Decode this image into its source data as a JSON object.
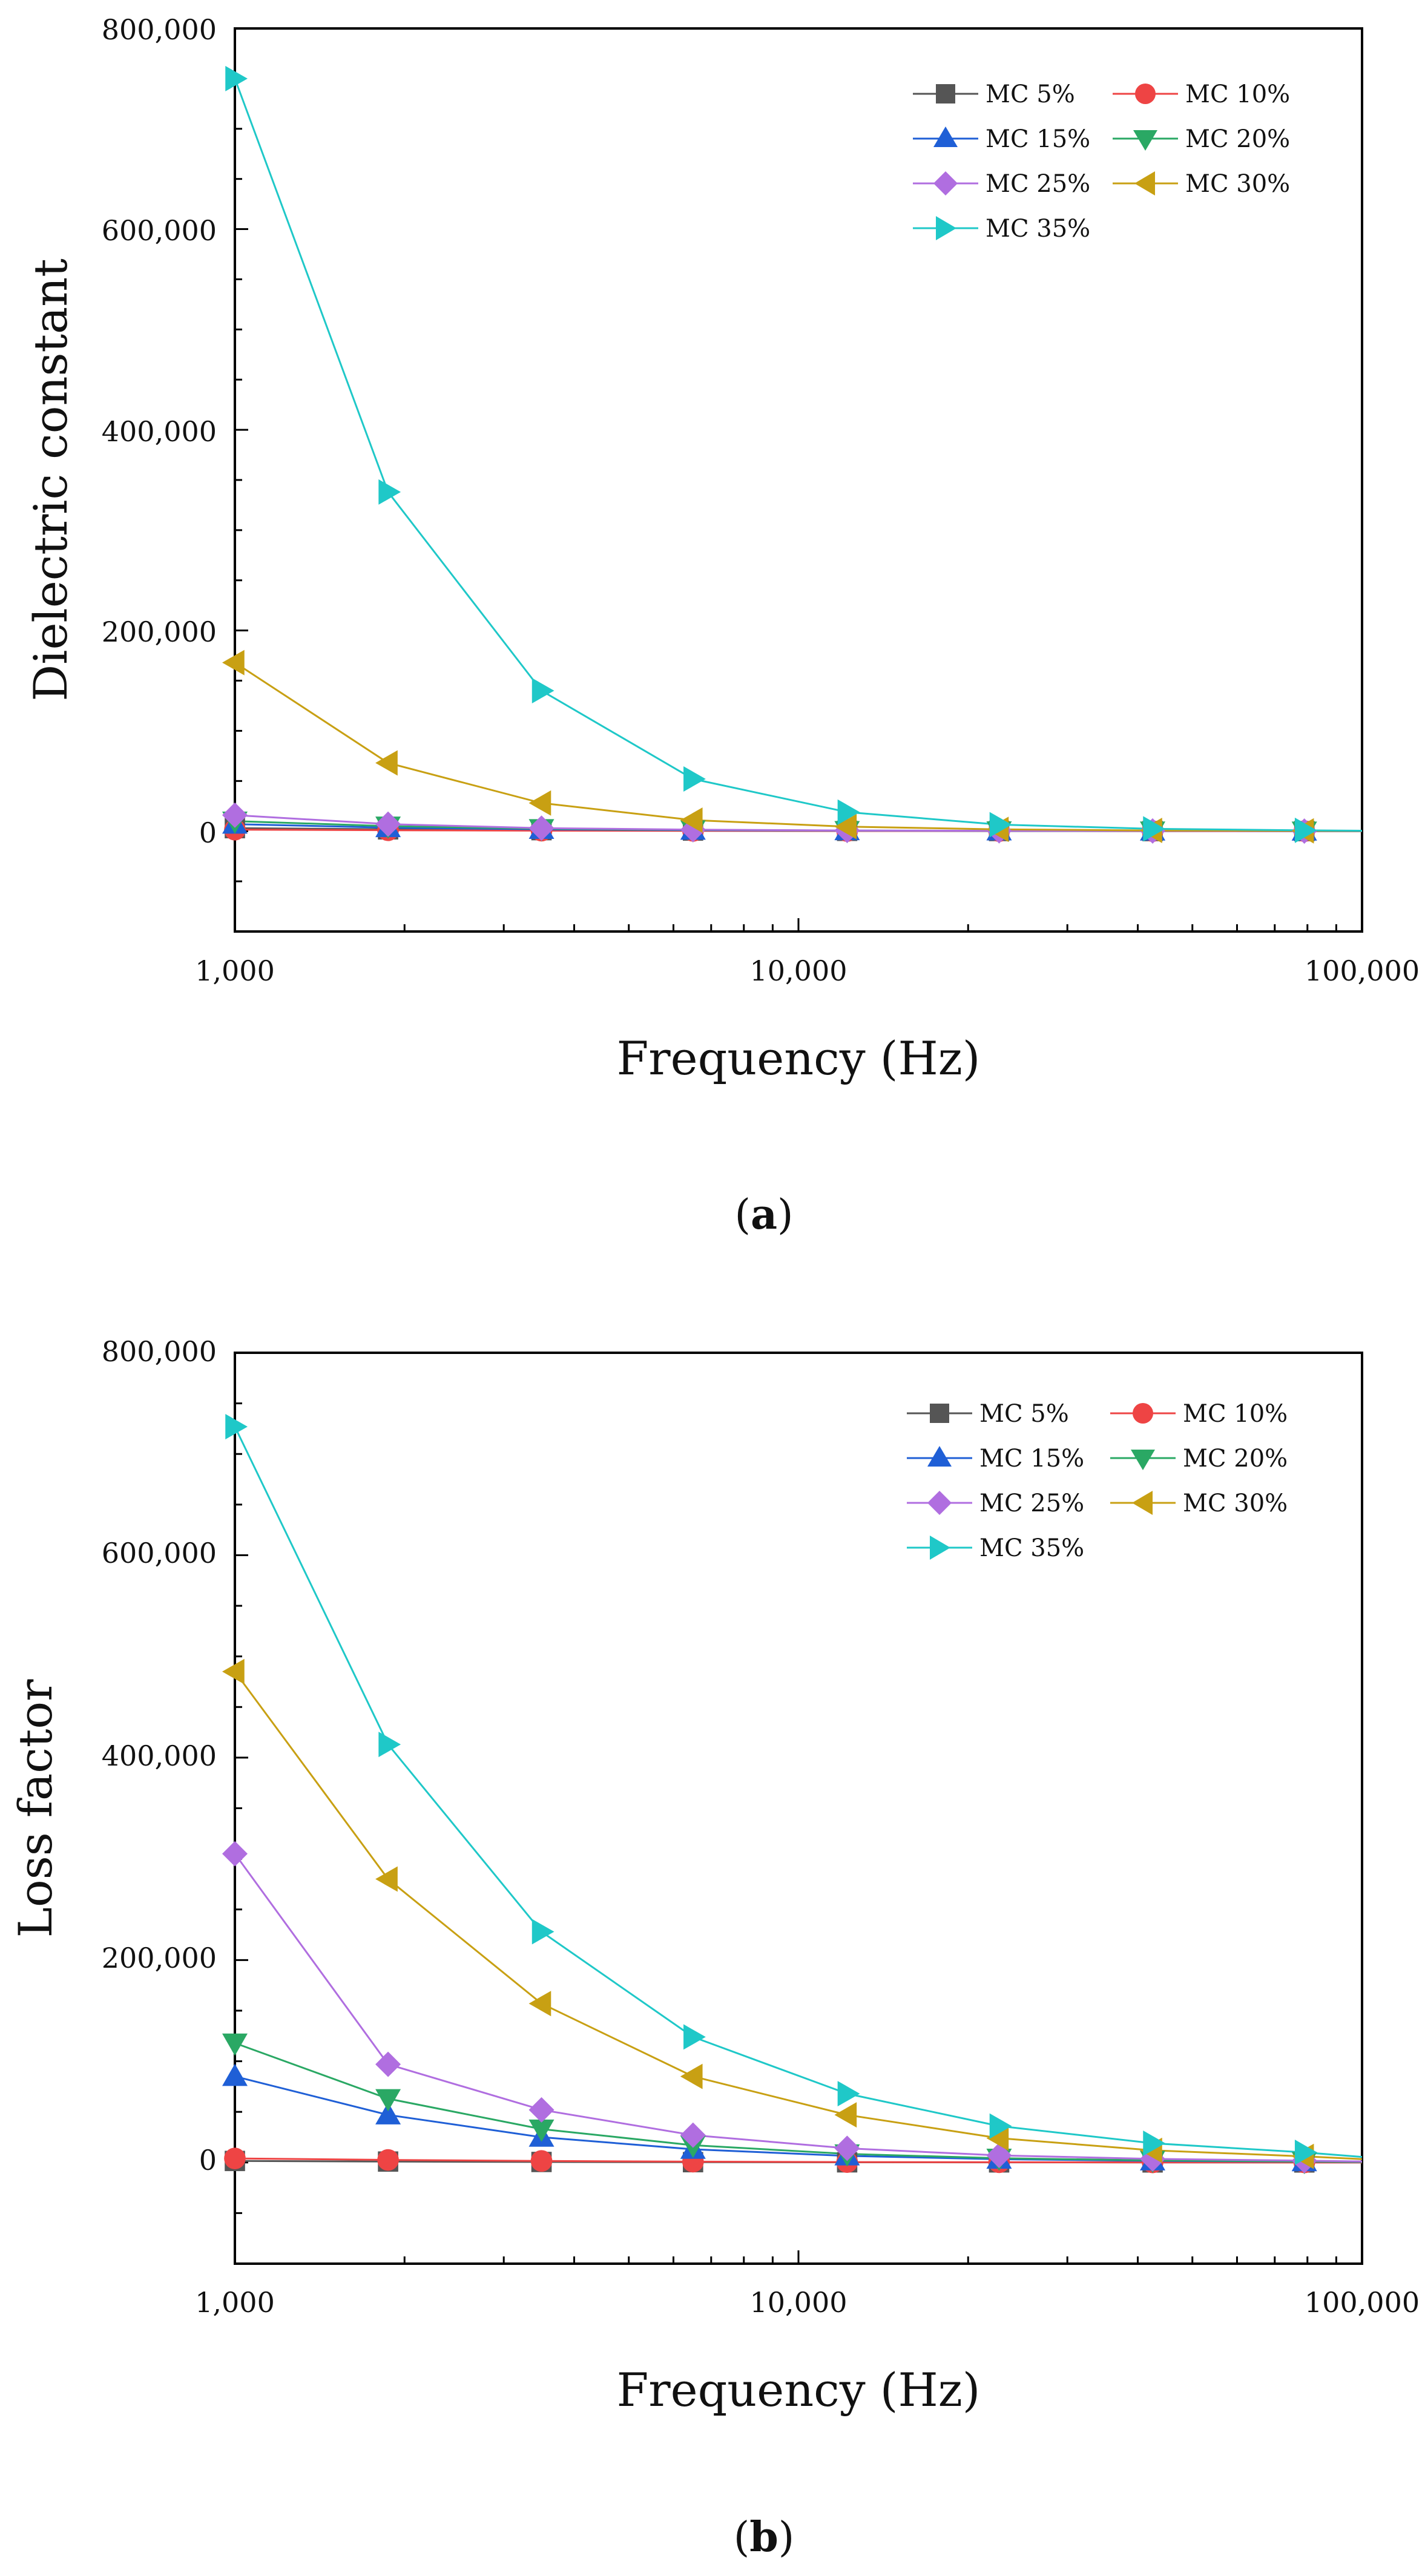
{
  "chart_data": [
    {
      "id": "a",
      "type": "line",
      "caption_open": "(",
      "caption_letter": "a",
      "caption_close": ")",
      "title": "",
      "xlabel": "Frequency (Hz)",
      "ylabel": "Dielectric constant",
      "xscale": "log",
      "xlim": [
        1000,
        100000
      ],
      "ylim": [
        -100000,
        800000
      ],
      "xticks": [
        1000,
        10000,
        100000
      ],
      "xtick_labels": [
        "1,000",
        "10,000",
        "100,000"
      ],
      "yticks": [
        0,
        200000,
        400000,
        600000,
        800000
      ],
      "ytick_labels": [
        "0",
        "200,000",
        "400,000",
        "600,000",
        "800,000"
      ],
      "legend_position": "top-right",
      "marker_x": [
        1000,
        1870,
        3500,
        6500,
        12200,
        22700,
        42500,
        79000
      ],
      "series": [
        {
          "name": "MC 5%",
          "color": "#555555",
          "marker": "square",
          "values": [
            3000,
            1800,
            1000,
            600,
            300,
            150,
            80,
            40
          ]
        },
        {
          "name": "MC 10%",
          "color": "#ee4444",
          "marker": "circle",
          "values": [
            1500,
            900,
            500,
            300,
            150,
            80,
            40,
            20
          ]
        },
        {
          "name": "MC 15%",
          "color": "#1f5fd6",
          "marker": "triangle-up",
          "values": [
            7000,
            3500,
            1800,
            1000,
            500,
            250,
            120,
            60
          ]
        },
        {
          "name": "MC 20%",
          "color": "#2aa864",
          "marker": "triangle-down",
          "values": [
            10000,
            5000,
            2500,
            1300,
            600,
            300,
            150,
            80
          ]
        },
        {
          "name": "MC 25%",
          "color": "#b06ee0",
          "marker": "diamond",
          "values": [
            16000,
            7000,
            3000,
            1500,
            700,
            350,
            180,
            90
          ]
        },
        {
          "name": "MC 30%",
          "color": "#c8a013",
          "marker": "triangle-left",
          "values": [
            168000,
            68000,
            28000,
            11000,
            4500,
            1800,
            700,
            300
          ]
        },
        {
          "name": "MC 35%",
          "color": "#1fc8c8",
          "marker": "triangle-right",
          "values": [
            750000,
            338000,
            140000,
            52000,
            19000,
            6500,
            2300,
            800
          ]
        }
      ]
    },
    {
      "id": "b",
      "type": "line",
      "caption_open": "(",
      "caption_letter": "b",
      "caption_close": ")",
      "title": "",
      "xlabel": "Frequency (Hz)",
      "ylabel": "Loss factor",
      "xscale": "log",
      "xlim": [
        1000,
        100000
      ],
      "ylim": [
        -100000,
        800000
      ],
      "xticks": [
        1000,
        10000,
        100000
      ],
      "xtick_labels": [
        "1,000",
        "10,000",
        "100,000"
      ],
      "yticks": [
        0,
        200000,
        400000,
        600000,
        800000
      ],
      "ytick_labels": [
        "0",
        "200,000",
        "400,000",
        "600,000",
        "800,000"
      ],
      "legend_position": "top-right",
      "marker_x": [
        1000,
        1870,
        3500,
        6500,
        12200,
        22700,
        42500,
        79000
      ],
      "series": [
        {
          "name": "MC 5%",
          "color": "#555555",
          "marker": "square",
          "values": [
            1500,
            900,
            500,
            300,
            150,
            80,
            40,
            20
          ]
        },
        {
          "name": "MC 10%",
          "color": "#ee4444",
          "marker": "circle",
          "values": [
            4000,
            2500,
            1500,
            800,
            400,
            200,
            100,
            50
          ]
        },
        {
          "name": "MC 15%",
          "color": "#1f5fd6",
          "marker": "triangle-up",
          "values": [
            85000,
            47000,
            25000,
            13000,
            6500,
            3200,
            1600,
            800
          ]
        },
        {
          "name": "MC 20%",
          "color": "#2aa864",
          "marker": "triangle-down",
          "values": [
            118000,
            63000,
            33000,
            17000,
            8500,
            4200,
            2100,
            1000
          ]
        },
        {
          "name": "MC 25%",
          "color": "#b06ee0",
          "marker": "diamond",
          "values": [
            305000,
            97000,
            52000,
            27000,
            14000,
            7000,
            3500,
            1800
          ]
        },
        {
          "name": "MC 30%",
          "color": "#c8a013",
          "marker": "triangle-left",
          "values": [
            485000,
            280000,
            157000,
            85000,
            47000,
            24000,
            12000,
            6000
          ]
        },
        {
          "name": "MC 35%",
          "color": "#1fc8c8",
          "marker": "triangle-right",
          "values": [
            727000,
            413000,
            228000,
            124000,
            68000,
            36000,
            19000,
            10000
          ]
        }
      ]
    }
  ]
}
